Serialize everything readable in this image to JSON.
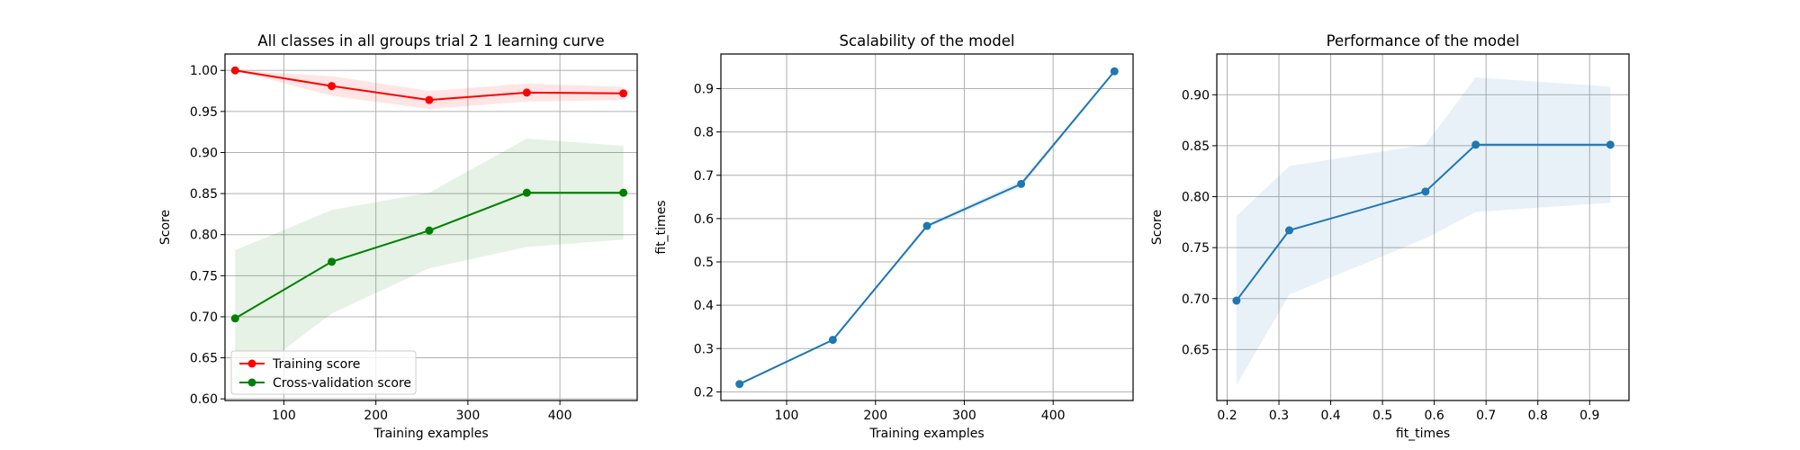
{
  "chart_data": [
    {
      "type": "line",
      "title": "All classes in all groups trial 2 1 learning curve",
      "xlabel": "Training examples",
      "ylabel": "Score",
      "xlim": [
        36,
        484
      ],
      "ylim": [
        0.598,
        1.02
      ],
      "xticks": [
        100,
        200,
        300,
        400
      ],
      "xtick_labels": [
        "100",
        "200",
        "300",
        "400"
      ],
      "yticks": [
        0.6,
        0.65,
        0.7,
        0.75,
        0.8,
        0.85,
        0.9,
        0.95,
        1.0
      ],
      "ytick_labels": [
        "0.60",
        "0.65",
        "0.70",
        "0.75",
        "0.80",
        "0.85",
        "0.90",
        "0.95",
        "1.00"
      ],
      "grid": true,
      "legend": "lower-left",
      "x": [
        47,
        152,
        258,
        364,
        469
      ],
      "series": [
        {
          "name": "Training score",
          "color": "#ff0000",
          "values": [
            1.0,
            0.981,
            0.964,
            0.973,
            0.972
          ],
          "band_lower": [
            1.0,
            0.969,
            0.953,
            0.962,
            0.964
          ],
          "band_upper": [
            1.0,
            0.993,
            0.975,
            0.984,
            0.98
          ],
          "band_color": "#ff0000"
        },
        {
          "name": "Cross-validation score",
          "color": "#008000",
          "values": [
            0.698,
            0.767,
            0.805,
            0.851,
            0.851
          ],
          "band_lower": [
            0.615,
            0.704,
            0.759,
            0.785,
            0.794
          ],
          "band_upper": [
            0.781,
            0.83,
            0.851,
            0.917,
            0.908
          ],
          "band_color": "#008000"
        }
      ]
    },
    {
      "type": "line",
      "title": "Scalability of the model",
      "xlabel": "Training examples",
      "ylabel": "fit_times",
      "xlim": [
        26,
        490
      ],
      "ylim": [
        0.18,
        0.98
      ],
      "xticks": [
        100,
        200,
        300,
        400
      ],
      "xtick_labels": [
        "100",
        "200",
        "300",
        "400"
      ],
      "yticks": [
        0.2,
        0.3,
        0.4,
        0.5,
        0.6,
        0.7,
        0.8,
        0.9
      ],
      "ytick_labels": [
        "0.2",
        "0.3",
        "0.4",
        "0.5",
        "0.6",
        "0.7",
        "0.8",
        "0.9"
      ],
      "grid": true,
      "x": [
        47,
        152,
        258,
        364,
        469
      ],
      "series": [
        {
          "color": "#1f77b4",
          "values": [
            0.218,
            0.32,
            0.583,
            0.68,
            0.94
          ],
          "band_lower": [
            0.216,
            0.318,
            0.578,
            0.672,
            0.938
          ],
          "band_upper": [
            0.22,
            0.322,
            0.588,
            0.688,
            0.942
          ],
          "band_color": "#1f77b4"
        }
      ]
    },
    {
      "type": "line",
      "title": "Performance of the model",
      "xlabel": "fit_times",
      "ylabel": "Score",
      "xlim": [
        0.18,
        0.976
      ],
      "ylim": [
        0.6,
        0.94
      ],
      "xticks": [
        0.2,
        0.3,
        0.4,
        0.5,
        0.6,
        0.7,
        0.8,
        0.9
      ],
      "xtick_labels": [
        "0.2",
        "0.3",
        "0.4",
        "0.5",
        "0.6",
        "0.7",
        "0.8",
        "0.9"
      ],
      "yticks": [
        0.65,
        0.7,
        0.75,
        0.8,
        0.85,
        0.9
      ],
      "ytick_labels": [
        "0.65",
        "0.70",
        "0.75",
        "0.80",
        "0.85",
        "0.90"
      ],
      "grid": true,
      "x": [
        0.218,
        0.32,
        0.583,
        0.68,
        0.94
      ],
      "series": [
        {
          "color": "#1f77b4",
          "values": [
            0.698,
            0.767,
            0.805,
            0.851,
            0.851
          ],
          "band_lower": [
            0.615,
            0.704,
            0.759,
            0.785,
            0.794
          ],
          "band_upper": [
            0.781,
            0.83,
            0.851,
            0.917,
            0.908
          ],
          "band_color": "#1f77b4"
        }
      ]
    }
  ]
}
